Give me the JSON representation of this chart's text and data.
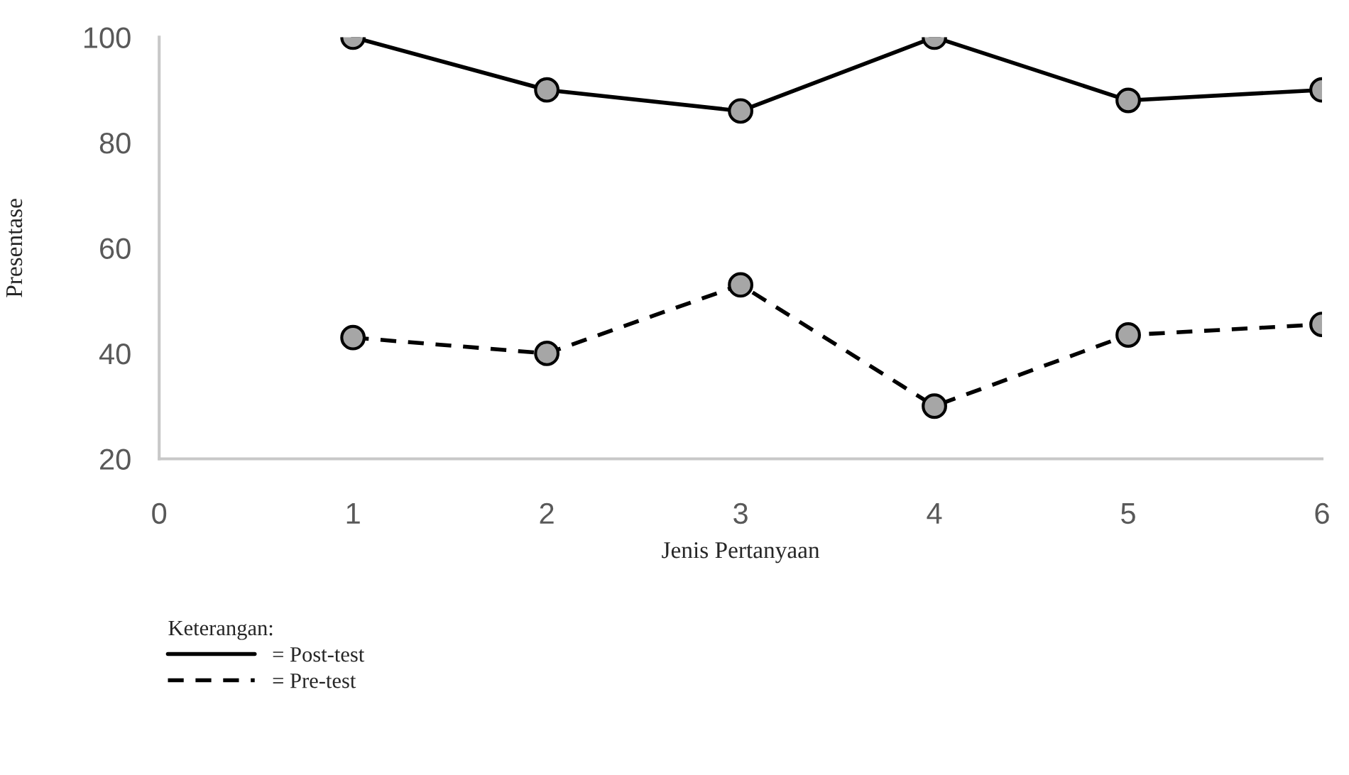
{
  "chart_data": {
    "type": "line",
    "xlabel": "Jenis Pertanyaan",
    "ylabel": "Presentase",
    "legend_title": "Keterangan:",
    "x": [
      1,
      2,
      3,
      4,
      5,
      6
    ],
    "series": [
      {
        "name": "= Post-test",
        "color": "#000000",
        "line_style": "solid",
        "values": [
          100,
          90,
          86,
          100,
          88,
          90
        ]
      },
      {
        "name": "= Pre-test",
        "color": "#000000",
        "line_style": "dashed",
        "values": [
          43,
          40,
          53,
          30,
          43.5,
          45.5
        ]
      }
    ],
    "xlim": [
      0,
      6
    ],
    "xticks": [
      0,
      1,
      2,
      3,
      4,
      5,
      6
    ],
    "ylim": [
      20,
      100
    ],
    "yticks": [
      20,
      40,
      60,
      80,
      100
    ],
    "marker": "circle",
    "grid": false,
    "legend": "bottom left"
  }
}
